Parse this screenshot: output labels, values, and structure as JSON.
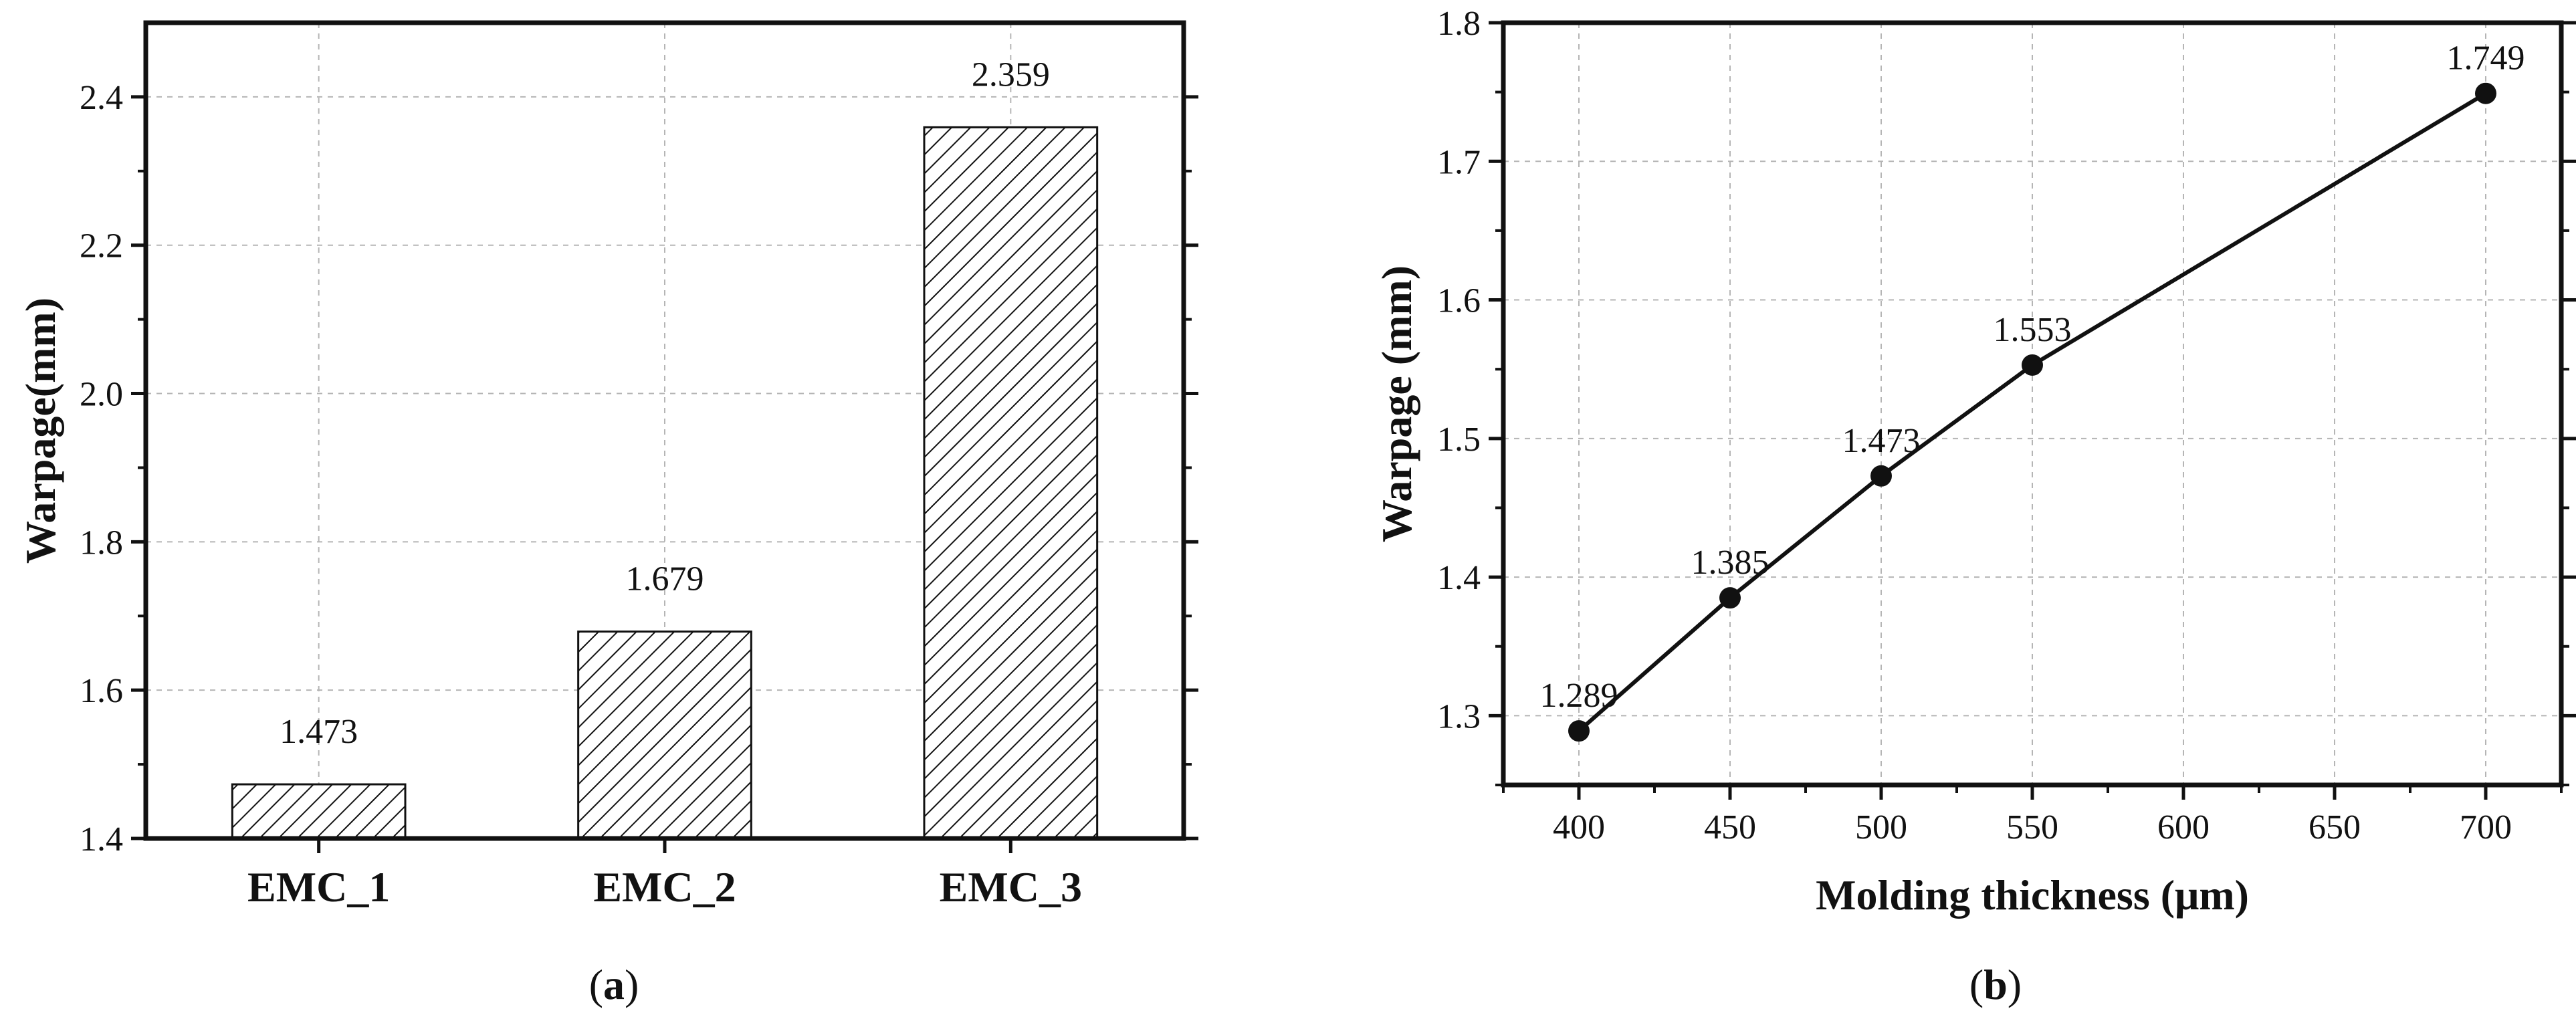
{
  "chart_data": [
    {
      "type": "bar",
      "categories": [
        "EMC_1",
        "EMC_2",
        "EMC_3"
      ],
      "values": [
        1.473,
        1.679,
        2.359
      ],
      "data_labels": [
        "1.473",
        "1.679",
        "2.359"
      ],
      "ylabel": "Warpage(mm)",
      "xlabel": "",
      "ylim": [
        1.4,
        2.5
      ],
      "yticks": [
        1.4,
        1.6,
        1.8,
        2.0,
        2.2,
        2.4
      ],
      "ytick_labels": [
        "1.4",
        "1.6",
        "1.8",
        "2.0",
        "2.2",
        "2.4"
      ],
      "grid": true,
      "fill": "diagonal hatch",
      "panel_label": "(a)"
    },
    {
      "type": "line",
      "x": [
        400,
        450,
        500,
        550,
        700
      ],
      "values": [
        1.289,
        1.385,
        1.473,
        1.553,
        1.749
      ],
      "data_labels": [
        "1.289",
        "1.385",
        "1.473",
        "1.553",
        "1.749"
      ],
      "xlabel": "Molding thickness (μm)",
      "ylabel": "Warpage (mm)",
      "xlim": [
        375,
        725
      ],
      "ylim": [
        1.25,
        1.8
      ],
      "xticks": [
        400,
        450,
        500,
        550,
        600,
        650,
        700
      ],
      "xtick_labels": [
        "400",
        "450",
        "500",
        "550",
        "600",
        "650",
        "700"
      ],
      "yticks": [
        1.3,
        1.4,
        1.5,
        1.6,
        1.7,
        1.8
      ],
      "ytick_labels": [
        "1.3",
        "1.4",
        "1.5",
        "1.6",
        "1.7",
        "1.8"
      ],
      "grid": true,
      "marker": "filled circle",
      "panel_label": "(b)"
    }
  ],
  "colors": {
    "ink": "#111111",
    "grid": "#b5b5b5",
    "background": "#ffffff"
  }
}
